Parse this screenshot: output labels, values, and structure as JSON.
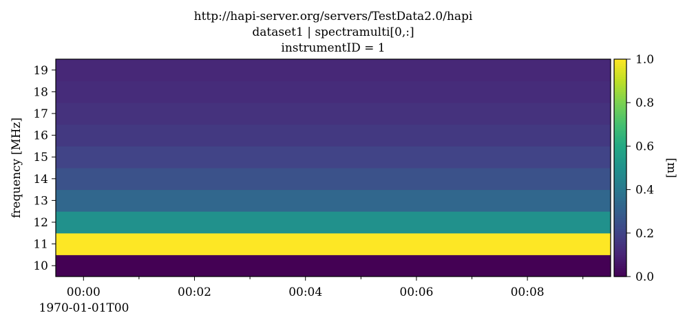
{
  "title_lines": [
    "http://hapi-server.org/servers/TestData2.0/hapi",
    "dataset1 | spectramulti[0,:]",
    "instrumentID = 1"
  ],
  "chart_data": {
    "type": "heatmap",
    "title": "http://hapi-server.org/servers/TestData2.0/hapi\ndataset1 | spectramulti[0,:]\ninstrumentID = 1",
    "xlabel": "",
    "ylabel": "frequency [MHz]",
    "x_tick_labels": [
      "00:00",
      "00:02",
      "00:04",
      "00:06",
      "00:08"
    ],
    "x_tick_minutes": [
      0,
      2,
      4,
      6,
      8
    ],
    "x_minor_tick_minutes": [
      1,
      3,
      5,
      7,
      9
    ],
    "x_offset_label": "1970-01-01T00",
    "xlim_minutes": [
      -0.5,
      9.5
    ],
    "y_ticks": [
      10,
      11,
      12,
      13,
      14,
      15,
      16,
      17,
      18,
      19
    ],
    "ylim": [
      9.5,
      19.5
    ],
    "frequencies_MHz": [
      10,
      11,
      12,
      13,
      14,
      15,
      16,
      17,
      18,
      19
    ],
    "values": [
      0.0,
      1.0,
      0.5,
      0.333,
      0.25,
      0.2,
      0.167,
      0.143,
      0.125,
      0.111
    ],
    "colorbar": {
      "label": "[m]",
      "ticks": [
        0.0,
        0.2,
        0.4,
        0.6,
        0.8,
        1.0
      ],
      "tick_labels": [
        "0.0",
        "0.2",
        "0.4",
        "0.6",
        "0.8",
        "1.0"
      ],
      "range": [
        0.0,
        1.0
      ],
      "colormap": "viridis"
    },
    "grid": false
  }
}
